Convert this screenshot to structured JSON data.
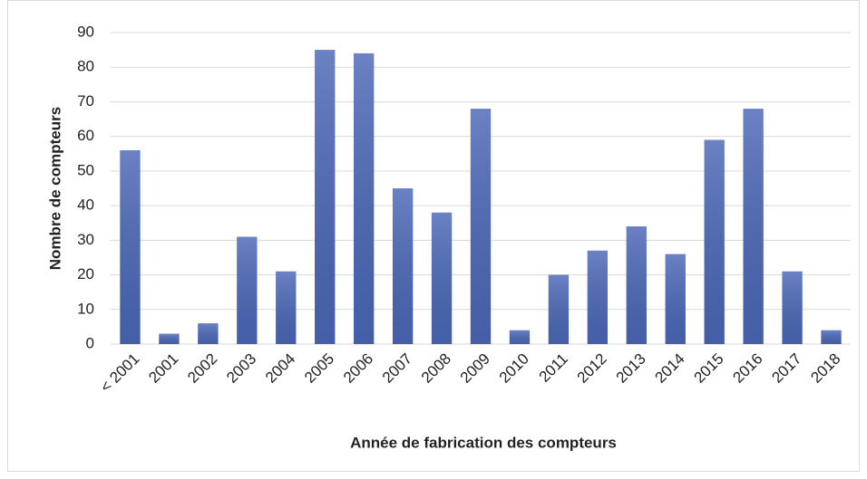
{
  "chart_data": {
    "type": "bar",
    "x_label": "Année de fabrication des compteurs",
    "y_label": "Nombre de compteurs",
    "categories": [
      "< 2001",
      "2001",
      "2002",
      "2003",
      "2004",
      "2005",
      "2006",
      "2007",
      "2008",
      "2009",
      "2010",
      "2011",
      "2012",
      "2013",
      "2014",
      "2015",
      "2016",
      "2017",
      "2018"
    ],
    "values": [
      56,
      3,
      6,
      31,
      21,
      85,
      84,
      45,
      38,
      68,
      4,
      20,
      27,
      34,
      26,
      59,
      68,
      21,
      4
    ],
    "color": "#4a67b6",
    "ylim": [
      0,
      90
    ],
    "yticks": [
      0,
      10,
      20,
      30,
      40,
      50,
      60,
      70,
      80,
      90
    ],
    "grid": true
  }
}
